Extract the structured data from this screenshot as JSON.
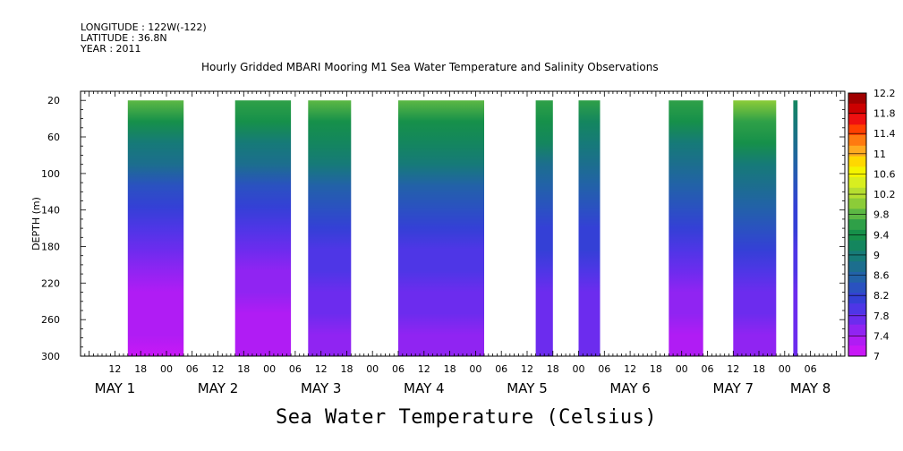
{
  "header": {
    "longitude": "LONGITUDE : 122W(-122)",
    "latitude": "LATITUDE : 36.8N",
    "year": "YEAR : 2011"
  },
  "chart_data": {
    "type": "heatmap",
    "title": "Hourly Gridded MBARI Mooring M1 Sea Water Temperature and Salinity Observations",
    "bottom_title": "Sea Water Temperature (Celsius)",
    "ylabel": "DEPTH (m)",
    "xlabel": "",
    "y_ticks": [
      20,
      60,
      100,
      140,
      180,
      220,
      260,
      300
    ],
    "ylim": [
      300,
      10
    ],
    "x_start": "2011-05-01T04:00",
    "x_end": "2011-05-08T14:00",
    "x_tick_times": [
      "2011-05-01T12:00",
      "2011-05-01T18:00",
      "2011-05-02T00:00",
      "2011-05-02T06:00",
      "2011-05-02T12:00",
      "2011-05-02T18:00",
      "2011-05-03T00:00",
      "2011-05-03T06:00",
      "2011-05-03T12:00",
      "2011-05-03T18:00",
      "2011-05-04T00:00",
      "2011-05-04T06:00",
      "2011-05-04T12:00",
      "2011-05-04T18:00",
      "2011-05-05T00:00",
      "2011-05-05T06:00",
      "2011-05-05T12:00",
      "2011-05-05T18:00",
      "2011-05-06T00:00",
      "2011-05-06T06:00",
      "2011-05-06T12:00",
      "2011-05-06T18:00",
      "2011-05-07T00:00",
      "2011-05-07T06:00",
      "2011-05-07T12:00",
      "2011-05-07T18:00",
      "2011-05-08T00:00",
      "2011-05-08T06:00"
    ],
    "x_tick_labels": [
      "12",
      "18",
      "00",
      "06",
      "12",
      "18",
      "00",
      "06",
      "12",
      "18",
      "00",
      "06",
      "12",
      "18",
      "00",
      "06",
      "12",
      "18",
      "00",
      "06",
      "12",
      "18",
      "00",
      "06",
      "12",
      "18",
      "00",
      "06"
    ],
    "day_labels": [
      {
        "text": "MAY  1",
        "time": "2011-05-01T12:00"
      },
      {
        "text": "MAY  2",
        "time": "2011-05-02T12:00"
      },
      {
        "text": "MAY  3",
        "time": "2011-05-03T12:00"
      },
      {
        "text": "MAY  4",
        "time": "2011-05-04T12:00"
      },
      {
        "text": "MAY  5",
        "time": "2011-05-05T12:00"
      },
      {
        "text": "MAY  6",
        "time": "2011-05-06T12:00"
      },
      {
        "text": "MAY  7",
        "time": "2011-05-07T12:00"
      },
      {
        "text": "MAY  8",
        "time": "2011-05-08T06:00"
      }
    ],
    "data_segments": [
      {
        "start": "2011-05-01T15:00",
        "end": "2011-05-02T04:00",
        "surface_temp": 9.9,
        "bottom_temp": 7.1
      },
      {
        "start": "2011-05-02T16:00",
        "end": "2011-05-03T05:00",
        "surface_temp": 9.8,
        "bottom_temp": 7.2
      },
      {
        "start": "2011-05-03T09:00",
        "end": "2011-05-03T19:00",
        "surface_temp": 9.9,
        "bottom_temp": 7.5
      },
      {
        "start": "2011-05-04T06:00",
        "end": "2011-05-05T02:00",
        "surface_temp": 9.9,
        "bottom_temp": 7.5
      },
      {
        "start": "2011-05-05T14:00",
        "end": "2011-05-05T18:00",
        "surface_temp": 9.8,
        "bottom_temp": 7.6
      },
      {
        "start": "2011-05-06T00:00",
        "end": "2011-05-06T05:00",
        "surface_temp": 9.6,
        "bottom_temp": 7.6
      },
      {
        "start": "2011-05-06T21:00",
        "end": "2011-05-07T05:00",
        "surface_temp": 9.8,
        "bottom_temp": 7.3
      },
      {
        "start": "2011-05-07T12:00",
        "end": "2011-05-07T22:00",
        "surface_temp": 10.2,
        "bottom_temp": 7.5
      },
      {
        "start": "2011-05-08T02:00",
        "end": "2011-05-08T03:00",
        "surface_temp": 9.2,
        "bottom_temp": 7.6
      }
    ],
    "colorbar": {
      "levels": [
        "12.2",
        "11.8",
        "11.4",
        "11",
        "10.6",
        "10.2",
        "9.8",
        "9.4",
        "9",
        "8.6",
        "8.2",
        "7.8",
        "7.4",
        "7"
      ],
      "colors": [
        "#a00000",
        "#cc0000",
        "#ee1010",
        "#ff4000",
        "#ff7a10",
        "#ffaa20",
        "#ffd800",
        "#f4f400",
        "#d8ee20",
        "#b6de30",
        "#8ccc38",
        "#5cb844",
        "#2fa048",
        "#16904a",
        "#14865e",
        "#167a78",
        "#1c6e8e",
        "#2262a8",
        "#2a52c0",
        "#3440d6",
        "#4e36e6",
        "#6c2cee",
        "#9024f2",
        "#b01cf4",
        "#c818f6"
      ]
    }
  }
}
